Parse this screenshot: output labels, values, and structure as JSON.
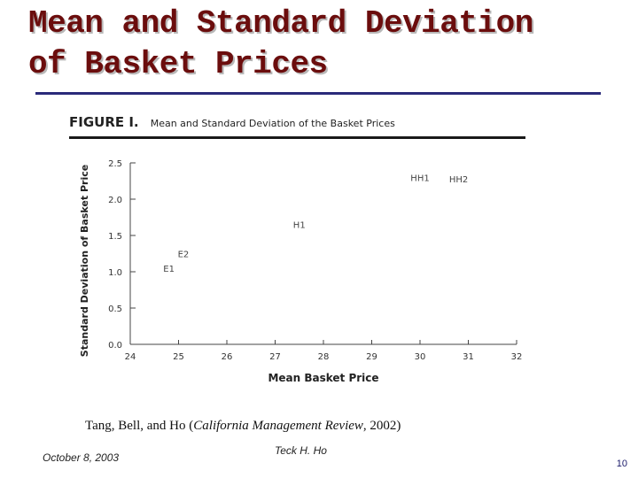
{
  "slide": {
    "title_line1": "Mean and Standard Deviation",
    "title_line2": "of Basket Prices",
    "colors": {
      "title": "#6b0d0d",
      "title_shadow": "#b8b8b8",
      "rule": "#2a2a7a"
    }
  },
  "figure": {
    "label": "FIGURE I.",
    "caption": "Mean and Standard Deviation of the Basket Prices"
  },
  "chart_data": {
    "type": "scatter",
    "xlabel": "Mean Basket Price",
    "ylabel": "Standard Deviation of Basket Price",
    "xlim": [
      24,
      32
    ],
    "ylim": [
      0,
      2.5
    ],
    "x_ticks": [
      "24",
      "25",
      "26",
      "27",
      "28",
      "29",
      "30",
      "31",
      "32"
    ],
    "y_ticks": [
      "0.0",
      "0.5",
      "1.0",
      "1.5",
      "2.0",
      "2.5"
    ],
    "grid": false,
    "points": [
      {
        "label": "E1",
        "x": 24.8,
        "y": 1.05
      },
      {
        "label": "E2",
        "x": 25.1,
        "y": 1.25
      },
      {
        "label": "H1",
        "x": 27.5,
        "y": 1.65
      },
      {
        "label": "HH1",
        "x": 30.0,
        "y": 2.3
      },
      {
        "label": "HH2",
        "x": 30.8,
        "y": 2.28
      }
    ]
  },
  "citation": {
    "prefix": "Tang, Bell, and Ho (",
    "journal": "California Management Review",
    "suffix": ", 2002)"
  },
  "footer": {
    "date": "October 8, 2003",
    "author": "Teck H.  Ho",
    "page": "10"
  }
}
